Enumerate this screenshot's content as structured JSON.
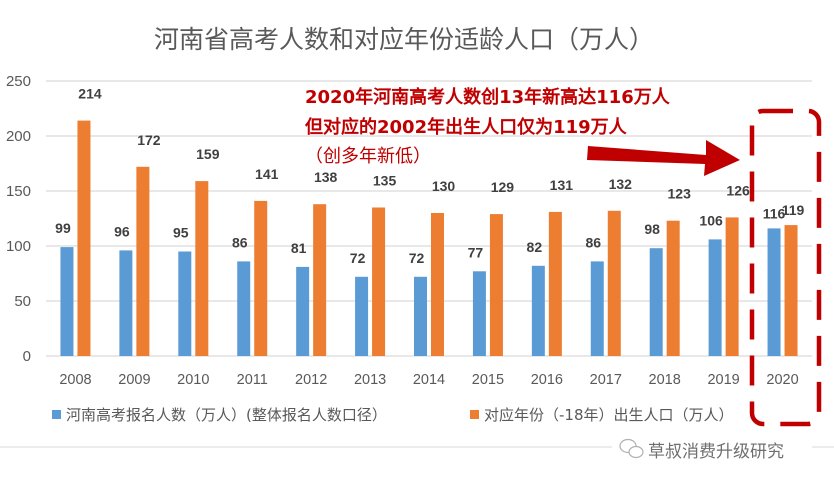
{
  "chart_data": {
    "type": "bar",
    "title": "河南省高考人数和对应年份适龄人口（万人）",
    "xlabel": "",
    "ylabel": "",
    "ylim": [
      0,
      250
    ],
    "yticks": [
      0,
      50,
      100,
      150,
      200,
      250
    ],
    "grid": true,
    "legend_position": "bottom",
    "categories": [
      "2008",
      "2009",
      "2010",
      "2011",
      "2012",
      "2013",
      "2014",
      "2015",
      "2016",
      "2017",
      "2018",
      "2019",
      "2020"
    ],
    "series": [
      {
        "name": "河南高考报名人数（万人）(整体报名人数口径）",
        "color": "#5b9bd5",
        "values": [
          99,
          96,
          95,
          86,
          81,
          72,
          72,
          77,
          82,
          86,
          98,
          106,
          116
        ]
      },
      {
        "name": "对应年份（-18年）出生人口（万人）",
        "color": "#ed7d31",
        "values": [
          214,
          172,
          159,
          141,
          138,
          135,
          130,
          129,
          131,
          132,
          123,
          126,
          119
        ]
      }
    ],
    "annotations": [
      "2020年河南高考人数创13年新高达116万人",
      "但对应的2002年出生人口仅为119万人",
      "（创多年新低）"
    ],
    "annotation_color": "#c00000",
    "highlight_category": "2020"
  },
  "watermark": {
    "text": "草叔消费升级研究",
    "icon": "wechat-icon"
  }
}
